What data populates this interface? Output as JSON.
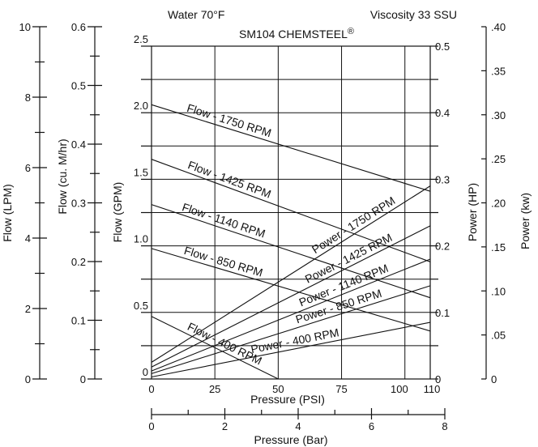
{
  "chart_data": {
    "type": "line",
    "title": "SM104 CHEMSTEEL",
    "title_mark": "®",
    "notes": {
      "left": "Water 70°F",
      "right": "Viscosity 33 SSU"
    },
    "xlabel": "Pressure (PSI)",
    "x_ticks": [
      "0",
      "25",
      "50",
      "75",
      "100",
      "110"
    ],
    "xlim": [
      0,
      110
    ],
    "secondary_x": {
      "label": "Pressure (Bar)",
      "ticks": [
        "0",
        "2",
        "4",
        "6",
        "8"
      ],
      "range": [
        0,
        8
      ]
    },
    "ylabel": "Flow (GPM)",
    "y_ticks": [
      "0",
      "0.5",
      "1.0",
      "1.5",
      "2.0",
      "2.5"
    ],
    "ylim": [
      0,
      2.5
    ],
    "flow_lpm_axis": {
      "label": "Flow (LPM)",
      "ticks": [
        "0",
        "2",
        "4",
        "6",
        "8",
        "10"
      ],
      "range": [
        0,
        10
      ]
    },
    "flow_m3_axis": {
      "label": "Flow (cu. M/hr)",
      "ticks": [
        "0",
        "0.1",
        "0.2",
        "0.3",
        "0.4",
        "0.5",
        "0.6"
      ],
      "range": [
        0,
        0.6
      ]
    },
    "power_hp_axis": {
      "label": "Power (HP)",
      "ticks": [
        "0",
        "0.1",
        "0.2",
        "0.3",
        "0.4",
        "0.5"
      ],
      "range": [
        0,
        0.5
      ]
    },
    "power_kw_axis": {
      "label": "Power (kw)",
      "ticks": [
        "0",
        ".05",
        ".10",
        ".15",
        ".20",
        ".25",
        ".30",
        ".35",
        ".40"
      ],
      "range": [
        0,
        0.4
      ]
    },
    "grid": true,
    "series": [
      {
        "name": "Flow - 1750 RPM",
        "axis": "flow",
        "x": [
          0,
          110
        ],
        "y": [
          2.06,
          1.41
        ]
      },
      {
        "name": "Flow - 1425 RPM",
        "axis": "flow",
        "x": [
          0,
          110
        ],
        "y": [
          1.65,
          0.88
        ]
      },
      {
        "name": "Flow - 1140 RPM",
        "axis": "flow",
        "x": [
          0,
          110
        ],
        "y": [
          1.31,
          0.61
        ]
      },
      {
        "name": "Flow - 850 RPM",
        "axis": "flow",
        "x": [
          0,
          110
        ],
        "y": [
          0.98,
          0.36
        ]
      },
      {
        "name": "Flow - 400 RPM",
        "axis": "flow",
        "x": [
          0,
          50
        ],
        "y": [
          0.47,
          0.0
        ]
      },
      {
        "name": "Power - 1750 RPM",
        "axis": "power",
        "x": [
          0,
          110
        ],
        "y": [
          0.025,
          0.29
        ]
      },
      {
        "name": "Power - 1425 RPM",
        "axis": "power",
        "x": [
          0,
          110
        ],
        "y": [
          0.018,
          0.23
        ]
      },
      {
        "name": "Power - 1140 RPM",
        "axis": "power",
        "x": [
          0,
          110
        ],
        "y": [
          0.012,
          0.18
        ]
      },
      {
        "name": "Power - 850 RPM",
        "axis": "power",
        "x": [
          0,
          110
        ],
        "y": [
          0.008,
          0.14
        ]
      },
      {
        "name": "Power - 400 RPM",
        "axis": "power",
        "x": [
          0,
          110
        ],
        "y": [
          0.003,
          0.085
        ]
      }
    ]
  }
}
